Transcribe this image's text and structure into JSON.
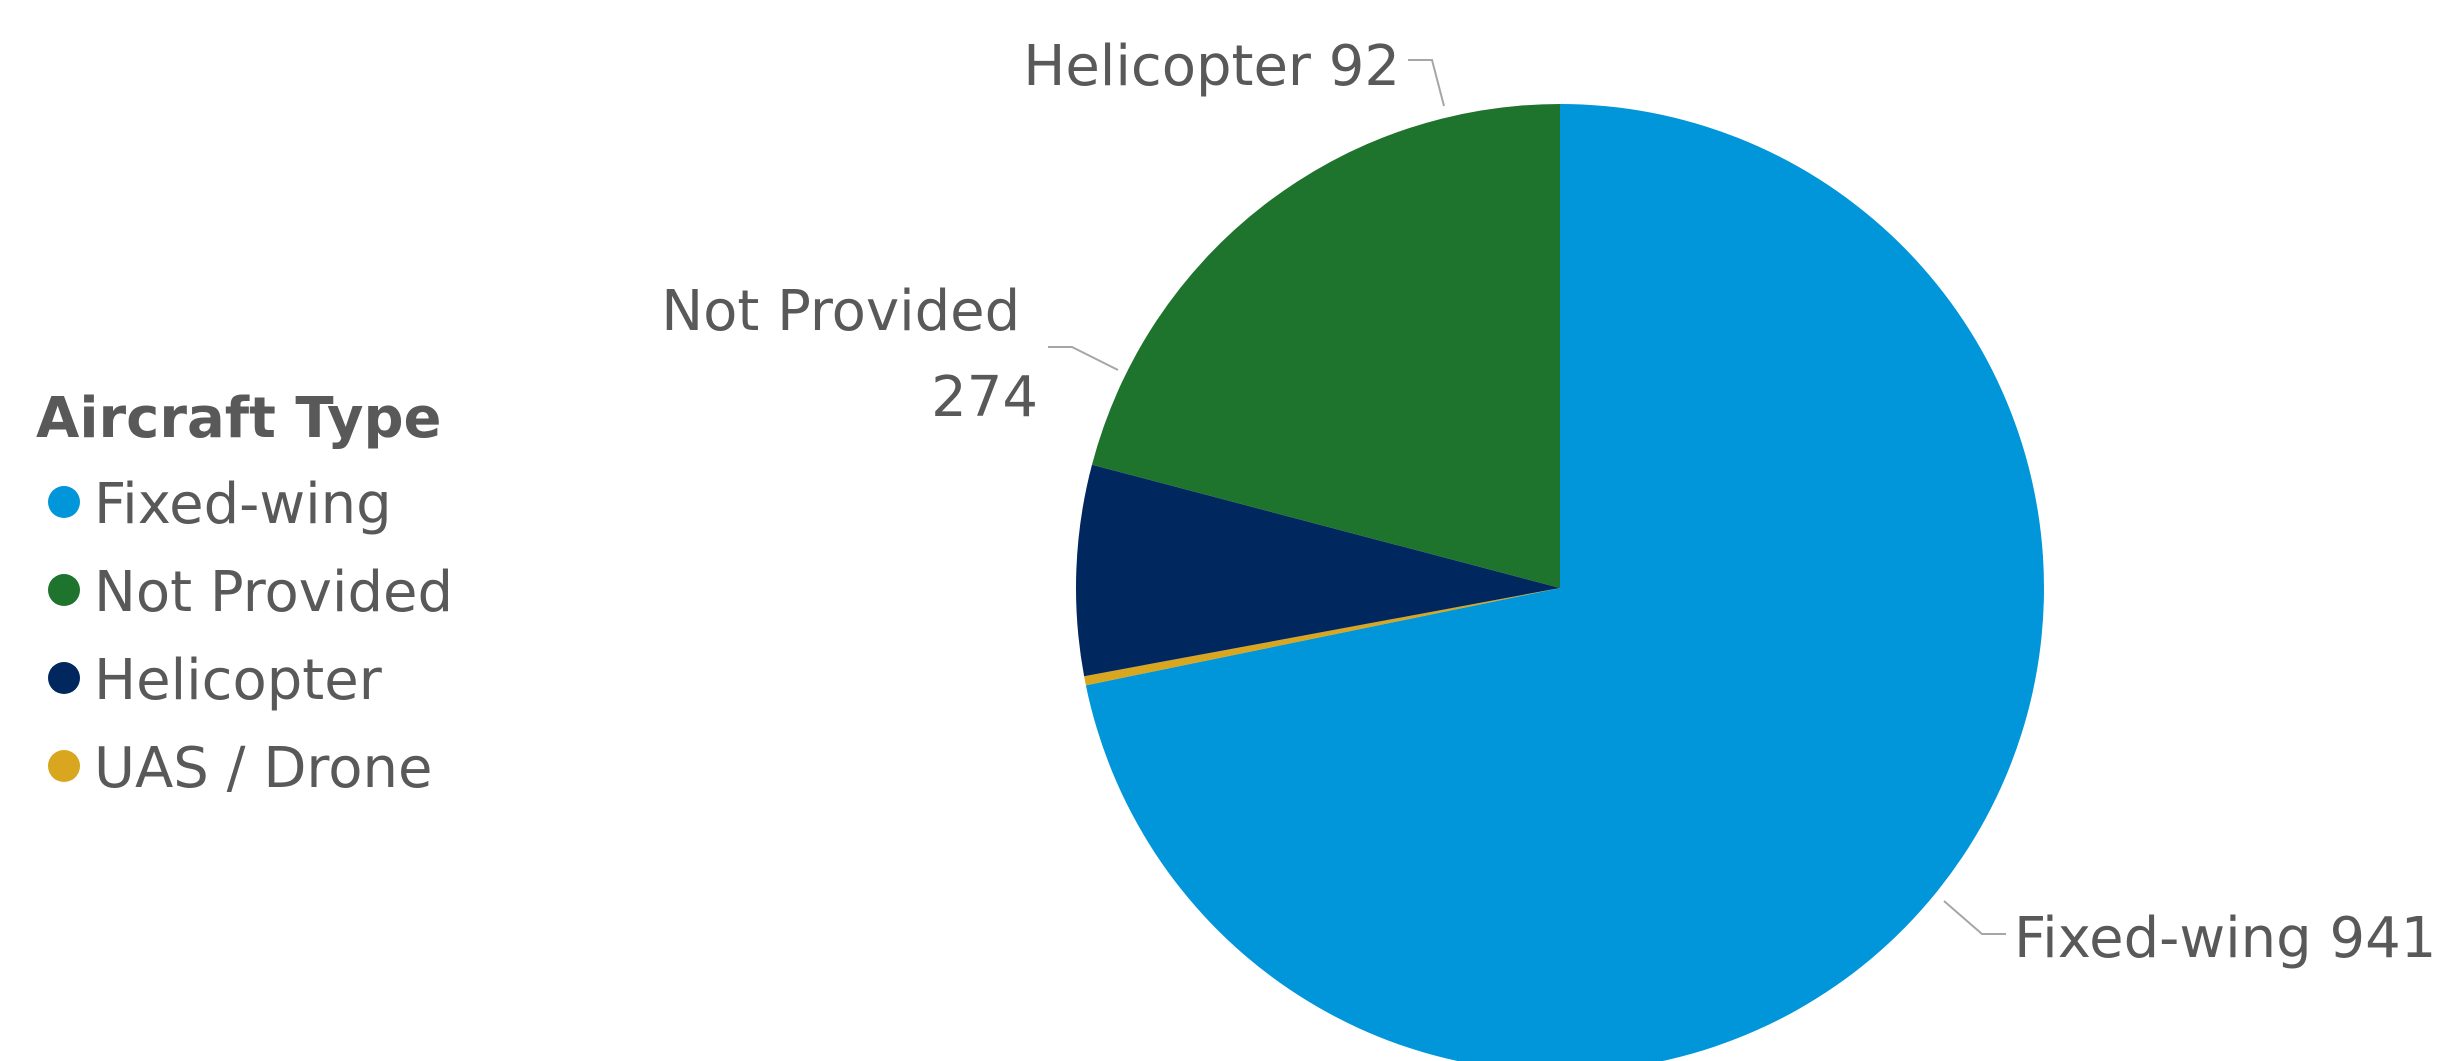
{
  "chart_data": {
    "type": "pie",
    "legend": {
      "title": "Aircraft Type",
      "placement": "left"
    },
    "slices": [
      {
        "name": "Fixed-wing",
        "value": 941,
        "color": "#0096d9",
        "label": "Fixed-wing 941"
      },
      {
        "name": "UAS / Drone",
        "value": 4,
        "color": "#d8a61f",
        "label": ""
      },
      {
        "name": "Helicopter",
        "value": 92,
        "color": "#00275e",
        "label": "Helicopter 92"
      },
      {
        "name": "Not Provided",
        "value": 274,
        "color": "#1e742c",
        "label_lines": [
          "Not Provided",
          "274"
        ]
      }
    ],
    "legend_order": [
      "Fixed-wing",
      "Not Provided",
      "Helicopter",
      "UAS / Drone"
    ]
  }
}
